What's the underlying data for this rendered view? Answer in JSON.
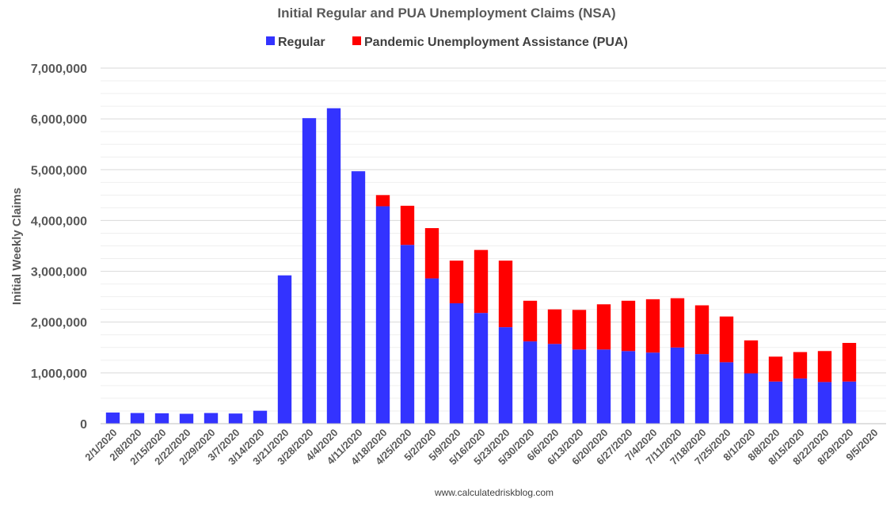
{
  "chart_data": {
    "type": "bar",
    "stacked": true,
    "title": "Initial Regular and PUA Unemployment Claims (NSA)",
    "xlabel": "",
    "ylabel": "Initial Weekly Claims",
    "ylim": [
      0,
      7000000
    ],
    "yticks": [
      0,
      1000000,
      2000000,
      3000000,
      4000000,
      5000000,
      6000000,
      7000000
    ],
    "ytick_labels": [
      "0",
      "1,000,000",
      "2,000,000",
      "3,000,000",
      "4,000,000",
      "5,000,000",
      "6,000,000",
      "7,000,000"
    ],
    "grid": true,
    "legend_position": "top-center",
    "categories": [
      "2/1/2020",
      "2/8/2020",
      "2/15/2020",
      "2/22/2020",
      "2/29/2020",
      "3/7/2020",
      "3/14/2020",
      "3/21/2020",
      "3/28/2020",
      "4/4/2020",
      "4/11/2020",
      "4/18/2020",
      "4/25/2020",
      "5/2/2020",
      "5/9/2020",
      "5/16/2020",
      "5/23/2020",
      "5/30/2020",
      "6/6/2020",
      "6/13/2020",
      "6/20/2020",
      "6/27/2020",
      "7/4/2020",
      "7/11/2020",
      "7/18/2020",
      "7/25/2020",
      "8/1/2020",
      "8/8/2020",
      "8/15/2020",
      "8/22/2020",
      "8/29/2020",
      "9/5/2020"
    ],
    "series": [
      {
        "name": "Regular",
        "color": "#3333ff",
        "values": [
          220000,
          210000,
          205000,
          195000,
          210000,
          200000,
          255000,
          2920000,
          6015000,
          6210000,
          4970000,
          4280000,
          3520000,
          2860000,
          2370000,
          2180000,
          1900000,
          1620000,
          1570000,
          1460000,
          1460000,
          1430000,
          1400000,
          1500000,
          1370000,
          1210000,
          990000,
          830000,
          890000,
          820000,
          830000,
          0
        ]
      },
      {
        "name": "Pandemic Unemployment Assistance (PUA)",
        "color": "#ff0000",
        "values": [
          0,
          0,
          0,
          0,
          0,
          0,
          0,
          0,
          0,
          0,
          0,
          220000,
          770000,
          990000,
          840000,
          1240000,
          1310000,
          800000,
          680000,
          780000,
          890000,
          990000,
          1050000,
          970000,
          960000,
          900000,
          650000,
          490000,
          520000,
          610000,
          760000,
          0
        ]
      }
    ],
    "source_note": "www.calculatedriskblog.com"
  }
}
